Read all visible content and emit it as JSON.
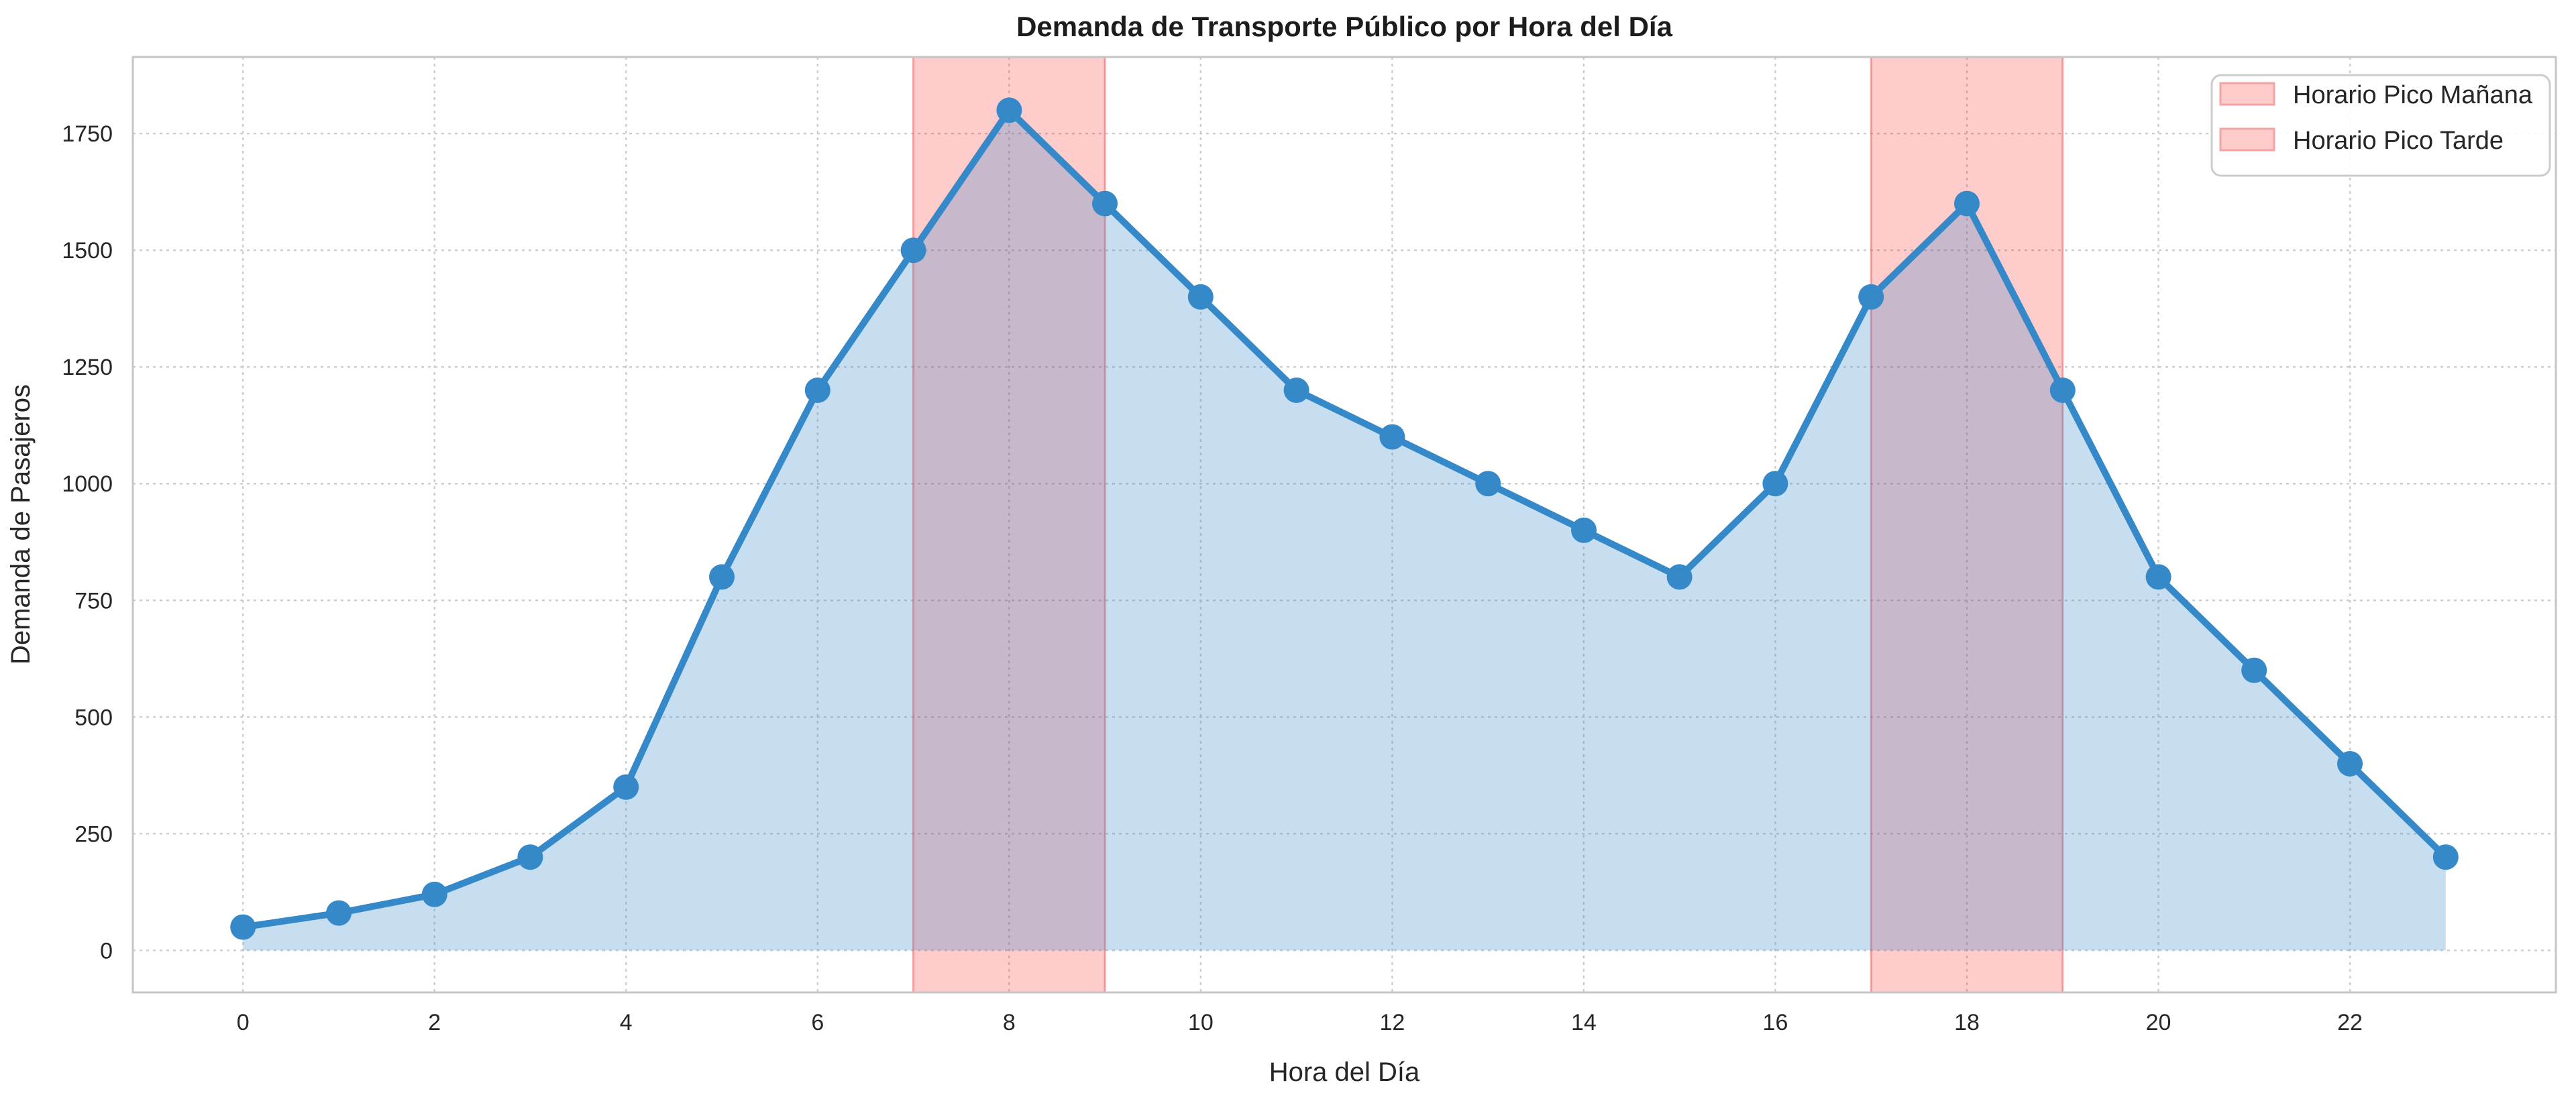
{
  "chart_data": {
    "type": "area",
    "title": "Demanda de Transporte Público por Hora del Día",
    "xlabel": "Hora del Día",
    "ylabel": "Demanda de Pasajeros",
    "x": [
      0,
      1,
      2,
      3,
      4,
      5,
      6,
      7,
      8,
      9,
      10,
      11,
      12,
      13,
      14,
      15,
      16,
      17,
      18,
      19,
      20,
      21,
      22,
      23
    ],
    "series": [
      {
        "name": "Demanda de Pasajeros",
        "values": [
          50,
          80,
          120,
          200,
          350,
          800,
          1200,
          1500,
          1800,
          1600,
          1400,
          1200,
          1100,
          1000,
          900,
          800,
          1000,
          1400,
          1600,
          1200,
          800,
          600,
          400,
          200
        ]
      }
    ],
    "bands": [
      {
        "label": "Horario Pico Mañana",
        "from": 7,
        "to": 9
      },
      {
        "label": "Horario Pico Tarde",
        "from": 17,
        "to": 19
      }
    ],
    "x_ticks": [
      0,
      2,
      4,
      6,
      8,
      10,
      12,
      14,
      16,
      18,
      20,
      22
    ],
    "y_ticks": [
      0,
      250,
      500,
      750,
      1000,
      1250,
      1500,
      1750
    ],
    "xlim": [
      -1.15,
      24.15
    ],
    "ylim": [
      -90,
      1914
    ],
    "grid": true,
    "grid_style": "dotted",
    "legend_position": "upper right",
    "marker": "o"
  },
  "colors": {
    "line": "#3589c9",
    "marker": "#3589c9",
    "area_fill": "rgba(53,137,201,0.28)",
    "band_fill": "rgba(255,0,0,0.20)",
    "band_edge": "rgba(231,96,96,0.55)",
    "legend_swatch_fill": "#ffcbcb",
    "legend_swatch_edge": "#f2a3a3",
    "legend_border": "#cccccc",
    "legend_background": "rgba(255,255,255,0.9)",
    "grid": "#cccccc",
    "spine": "#c6c6c6",
    "text": "#262626",
    "background": "#ffffff"
  }
}
